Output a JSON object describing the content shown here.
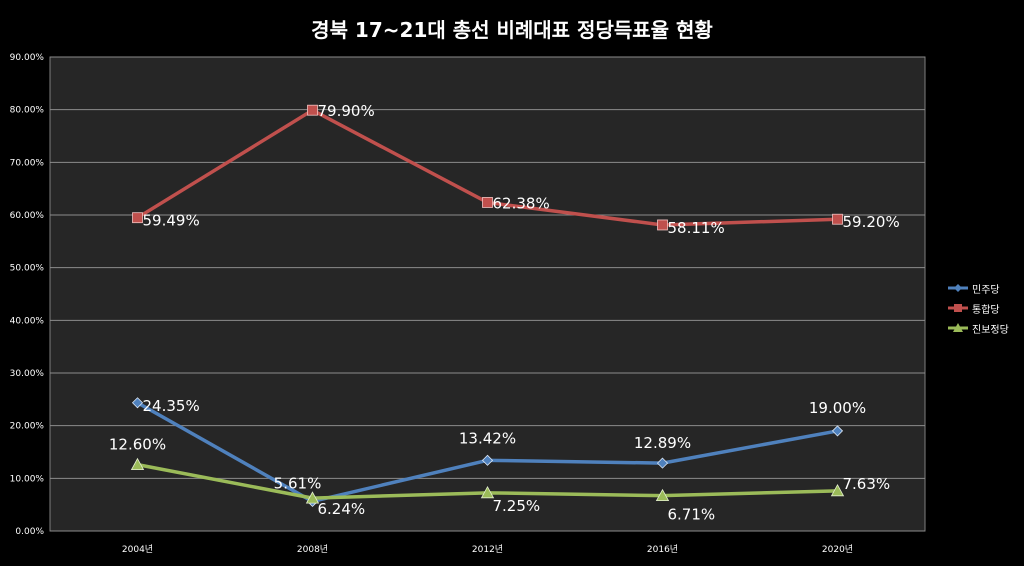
{
  "chart_data": {
    "type": "line",
    "title": "경북 17~21대 총선 비례대표 정당득표율 현황",
    "categories": [
      "2004년",
      "2008년",
      "2012년",
      "2016년",
      "2020년"
    ],
    "ylim": [
      0,
      90
    ],
    "y_ticks": [
      "0.00%",
      "10.00%",
      "20.00%",
      "30.00%",
      "40.00%",
      "50.00%",
      "60.00%",
      "70.00%",
      "80.00%",
      "90.00%"
    ],
    "grid": true,
    "legend_position": "right",
    "series": [
      {
        "name": "민주당",
        "color": "#4f81bd",
        "marker": "diamond",
        "values": [
          24.35,
          5.61,
          13.42,
          12.89,
          19.0
        ],
        "labels": [
          "24.35%",
          "5.61%",
          "13.42%",
          "12.89%",
          "19.00%"
        ]
      },
      {
        "name": "통합당",
        "color": "#c0504d",
        "marker": "square",
        "values": [
          59.49,
          79.9,
          62.38,
          58.11,
          59.2
        ],
        "labels": [
          "59.49%",
          "79.90%",
          "62.38%",
          "58.11%",
          "59.20%"
        ]
      },
      {
        "name": "진보정당",
        "color": "#9bbb59",
        "marker": "triangle",
        "values": [
          12.6,
          6.24,
          7.25,
          6.71,
          7.63
        ],
        "labels": [
          "12.60%",
          "6.24%",
          "7.25%",
          "6.71%",
          "7.63%"
        ]
      }
    ]
  }
}
